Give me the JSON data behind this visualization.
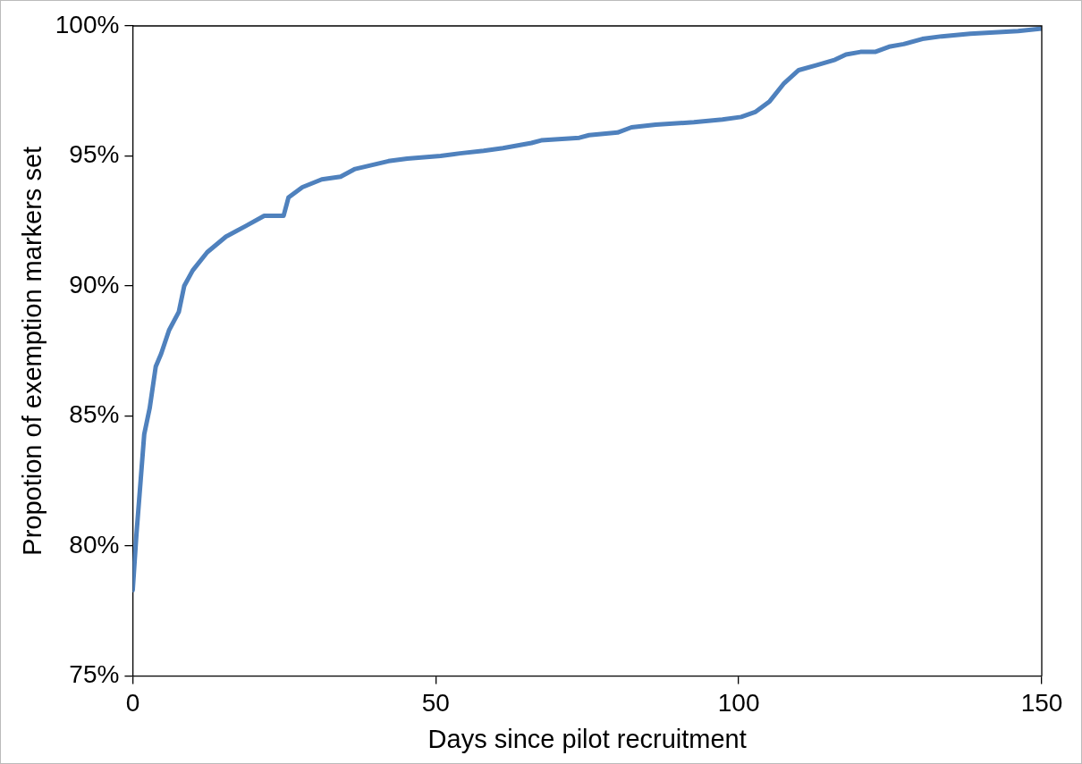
{
  "chart_data": {
    "type": "line",
    "xlabel": "Days since pilot recruitment",
    "ylabel": "Propotion of exemption markers set",
    "xlim": [
      0,
      150
    ],
    "xticks": [
      0,
      50,
      100,
      150
    ],
    "ylim": [
      75,
      100
    ],
    "yticks": [
      {
        "value": 75,
        "label": "75%"
      },
      {
        "value": 80,
        "label": "80%"
      },
      {
        "value": 85,
        "label": "85%"
      },
      {
        "value": 90,
        "label": "90%"
      },
      {
        "value": 95,
        "label": "95%"
      },
      {
        "value": 100,
        "label": "100%"
      }
    ],
    "grid": false,
    "legend": false,
    "marker": "none",
    "line_style": "solid",
    "x": [
      0,
      0.6,
      1.3,
      1.9,
      2.8,
      3.8,
      4.7,
      6.0,
      7.6,
      8.5,
      9.9,
      12.3,
      15.4,
      18.6,
      21.7,
      24.9,
      25.7,
      28.0,
      31.2,
      34.3,
      36.7,
      42.2,
      45.3,
      50.8,
      54.0,
      57.9,
      61.1,
      65.8,
      67.4,
      73.7,
      75.3,
      80.0,
      82.3,
      86.3,
      92.6,
      97.3,
      100.4,
      102.8,
      105.1,
      107.5,
      109.9,
      113.0,
      115.9,
      117.7,
      120.1,
      122.5,
      124.8,
      127.2,
      130.3,
      133.5,
      138.2,
      146.1,
      150
    ],
    "series": [
      {
        "color": "#4f81bd",
        "values": [
          78.3,
          80.4,
          82.5,
          84.3,
          85.3,
          86.9,
          87.4,
          88.3,
          89.0,
          90.0,
          90.6,
          91.3,
          91.9,
          92.3,
          92.7,
          92.7,
          93.4,
          93.8,
          94.1,
          94.2,
          94.5,
          94.8,
          94.9,
          95.0,
          95.1,
          95.2,
          95.3,
          95.5,
          95.6,
          95.7,
          95.8,
          95.9,
          96.1,
          96.2,
          96.3,
          96.4,
          96.5,
          96.7,
          97.1,
          97.8,
          98.3,
          98.5,
          98.7,
          98.9,
          99.0,
          99.0,
          99.2,
          99.3,
          99.5,
          99.6,
          99.7,
          99.8,
          99.9
        ]
      }
    ]
  }
}
